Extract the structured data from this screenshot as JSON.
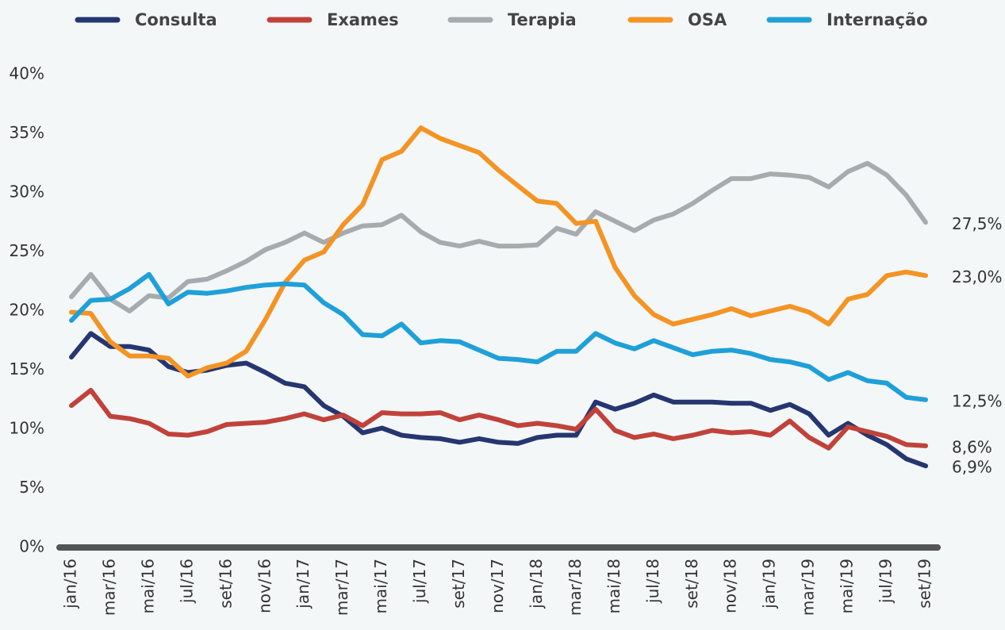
{
  "chart_data": {
    "type": "line",
    "categories": [
      "jan/16",
      null,
      "mar/16",
      null,
      "mai/16",
      null,
      "jul/16",
      null,
      "set/16",
      null,
      "nov/16",
      null,
      "jan/17",
      null,
      "mar/17",
      null,
      "mai/17",
      null,
      "jul/17",
      null,
      "set/17",
      null,
      "nov/17",
      null,
      "jan/18",
      null,
      "mar/18",
      null,
      "mai/18",
      null,
      "jul/18",
      null,
      "set/18",
      null,
      "nov/18",
      null,
      "jan/19",
      null,
      "mar/19",
      null,
      "mai/19",
      null,
      "jul/19",
      null,
      "set/19"
    ],
    "series": [
      {
        "name": "Consulta",
        "color": "#253670",
        "values": [
          16.1,
          18.1,
          17.0,
          17.0,
          16.7,
          15.3,
          14.8,
          15.0,
          15.4,
          15.6,
          14.8,
          13.9,
          13.6,
          12.0,
          11.1,
          9.7,
          10.1,
          9.5,
          9.3,
          9.2,
          8.9,
          9.2,
          8.9,
          8.8,
          9.3,
          9.5,
          9.5,
          12.3,
          11.7,
          12.2,
          12.9,
          12.3,
          12.3,
          12.3,
          12.2,
          12.2,
          11.6,
          12.1,
          11.3,
          9.5,
          10.5,
          9.5,
          8.7,
          7.5,
          6.9
        ],
        "value_labels": [
          null,
          null,
          null,
          null,
          null,
          null,
          null,
          null,
          null,
          null,
          null,
          null,
          null,
          null,
          null,
          null,
          null,
          null,
          null,
          null,
          null,
          null,
          null,
          null,
          null,
          null,
          null,
          null,
          null,
          null,
          null,
          null,
          null,
          null,
          null,
          null,
          null,
          null,
          null,
          null,
          null,
          null,
          null,
          null,
          "6,9%"
        ]
      },
      {
        "name": "Exames",
        "color": "#c0423a",
        "values": [
          12.0,
          13.3,
          11.1,
          10.9,
          10.5,
          9.6,
          9.5,
          9.8,
          10.4,
          10.5,
          10.6,
          10.9,
          11.3,
          10.8,
          11.2,
          10.3,
          11.4,
          11.3,
          11.3,
          11.4,
          10.8,
          11.2,
          10.8,
          10.3,
          10.5,
          10.3,
          10.0,
          11.7,
          9.9,
          9.3,
          9.6,
          9.2,
          9.5,
          9.9,
          9.7,
          9.8,
          9.5,
          10.7,
          9.3,
          8.4,
          10.2,
          9.8,
          9.4,
          8.7,
          8.6
        ],
        "value_labels": [
          null,
          null,
          null,
          null,
          null,
          null,
          null,
          null,
          null,
          null,
          null,
          null,
          null,
          null,
          null,
          null,
          null,
          null,
          null,
          null,
          null,
          null,
          null,
          null,
          null,
          null,
          null,
          null,
          null,
          null,
          null,
          null,
          null,
          null,
          null,
          null,
          null,
          null,
          null,
          null,
          null,
          null,
          null,
          null,
          "8,6%"
        ]
      },
      {
        "name": "Terapia",
        "color": "#a7abae",
        "values": [
          21.2,
          23.1,
          21.0,
          20.0,
          21.3,
          21.1,
          22.5,
          22.7,
          23.4,
          24.2,
          25.2,
          25.8,
          26.6,
          25.8,
          26.6,
          27.2,
          27.3,
          28.1,
          26.7,
          25.8,
          25.5,
          25.9,
          25.5,
          25.5,
          25.6,
          27.0,
          26.5,
          28.4,
          27.6,
          26.8,
          27.7,
          28.2,
          29.1,
          30.2,
          31.2,
          31.2,
          31.6,
          31.5,
          31.3,
          30.5,
          31.8,
          32.5,
          31.5,
          29.8,
          27.5
        ],
        "value_labels": [
          null,
          null,
          null,
          null,
          null,
          null,
          null,
          null,
          null,
          null,
          null,
          null,
          null,
          null,
          null,
          null,
          null,
          null,
          null,
          null,
          null,
          null,
          null,
          null,
          null,
          null,
          null,
          null,
          null,
          null,
          null,
          null,
          null,
          null,
          null,
          null,
          null,
          null,
          null,
          null,
          null,
          null,
          null,
          null,
          "27,5%"
        ]
      },
      {
        "name": "OSA",
        "color": "#f39425",
        "values": [
          19.9,
          19.8,
          17.4,
          16.2,
          16.2,
          16.0,
          14.5,
          15.2,
          15.6,
          16.6,
          19.3,
          22.4,
          24.3,
          25.0,
          27.3,
          29.0,
          32.8,
          33.5,
          35.5,
          34.6,
          34.0,
          33.4,
          31.9,
          30.6,
          29.3,
          29.1,
          27.4,
          27.6,
          23.7,
          21.3,
          19.7,
          18.9,
          19.3,
          19.7,
          20.2,
          19.6,
          20.0,
          20.4,
          19.9,
          18.9,
          21.0,
          21.4,
          23.0,
          23.3,
          23.0
        ],
        "value_labels": [
          null,
          null,
          null,
          null,
          null,
          null,
          null,
          null,
          null,
          null,
          null,
          null,
          null,
          null,
          null,
          null,
          null,
          null,
          null,
          null,
          null,
          null,
          null,
          null,
          null,
          null,
          null,
          null,
          null,
          null,
          null,
          null,
          null,
          null,
          null,
          null,
          null,
          null,
          null,
          null,
          null,
          null,
          null,
          null,
          "23,0%"
        ]
      },
      {
        "name": "Internação",
        "color": "#1fa0d8",
        "values": [
          19.2,
          20.9,
          21.0,
          21.9,
          23.1,
          20.6,
          21.6,
          21.5,
          21.7,
          22.0,
          22.2,
          22.3,
          22.2,
          20.7,
          19.7,
          18.0,
          17.9,
          18.9,
          17.3,
          17.5,
          17.4,
          16.7,
          16.0,
          15.9,
          15.7,
          16.6,
          16.6,
          18.1,
          17.3,
          16.8,
          17.5,
          16.9,
          16.3,
          16.6,
          16.7,
          16.4,
          15.9,
          15.7,
          15.3,
          14.2,
          14.8,
          14.1,
          13.9,
          12.7,
          12.5
        ],
        "value_labels": [
          null,
          null,
          null,
          null,
          null,
          null,
          null,
          null,
          null,
          null,
          null,
          null,
          null,
          null,
          null,
          null,
          null,
          null,
          null,
          null,
          null,
          null,
          null,
          null,
          null,
          null,
          null,
          null,
          null,
          null,
          null,
          null,
          null,
          null,
          null,
          null,
          null,
          null,
          null,
          null,
          null,
          null,
          null,
          null,
          "12,5%"
        ]
      }
    ],
    "ylim": [
      0,
      40
    ],
    "yticks": [
      {
        "value": 0,
        "label": "0%"
      },
      {
        "value": 5,
        "label": "5%"
      },
      {
        "value": 10,
        "label": "10%"
      },
      {
        "value": 15,
        "label": "15%"
      },
      {
        "value": 20,
        "label": "20%"
      },
      {
        "value": 25,
        "label": "25%"
      },
      {
        "value": 30,
        "label": "30%"
      },
      {
        "value": 35,
        "label": "35%"
      },
      {
        "value": 40,
        "label": "40%"
      }
    ],
    "grid": false,
    "legend": "top"
  }
}
